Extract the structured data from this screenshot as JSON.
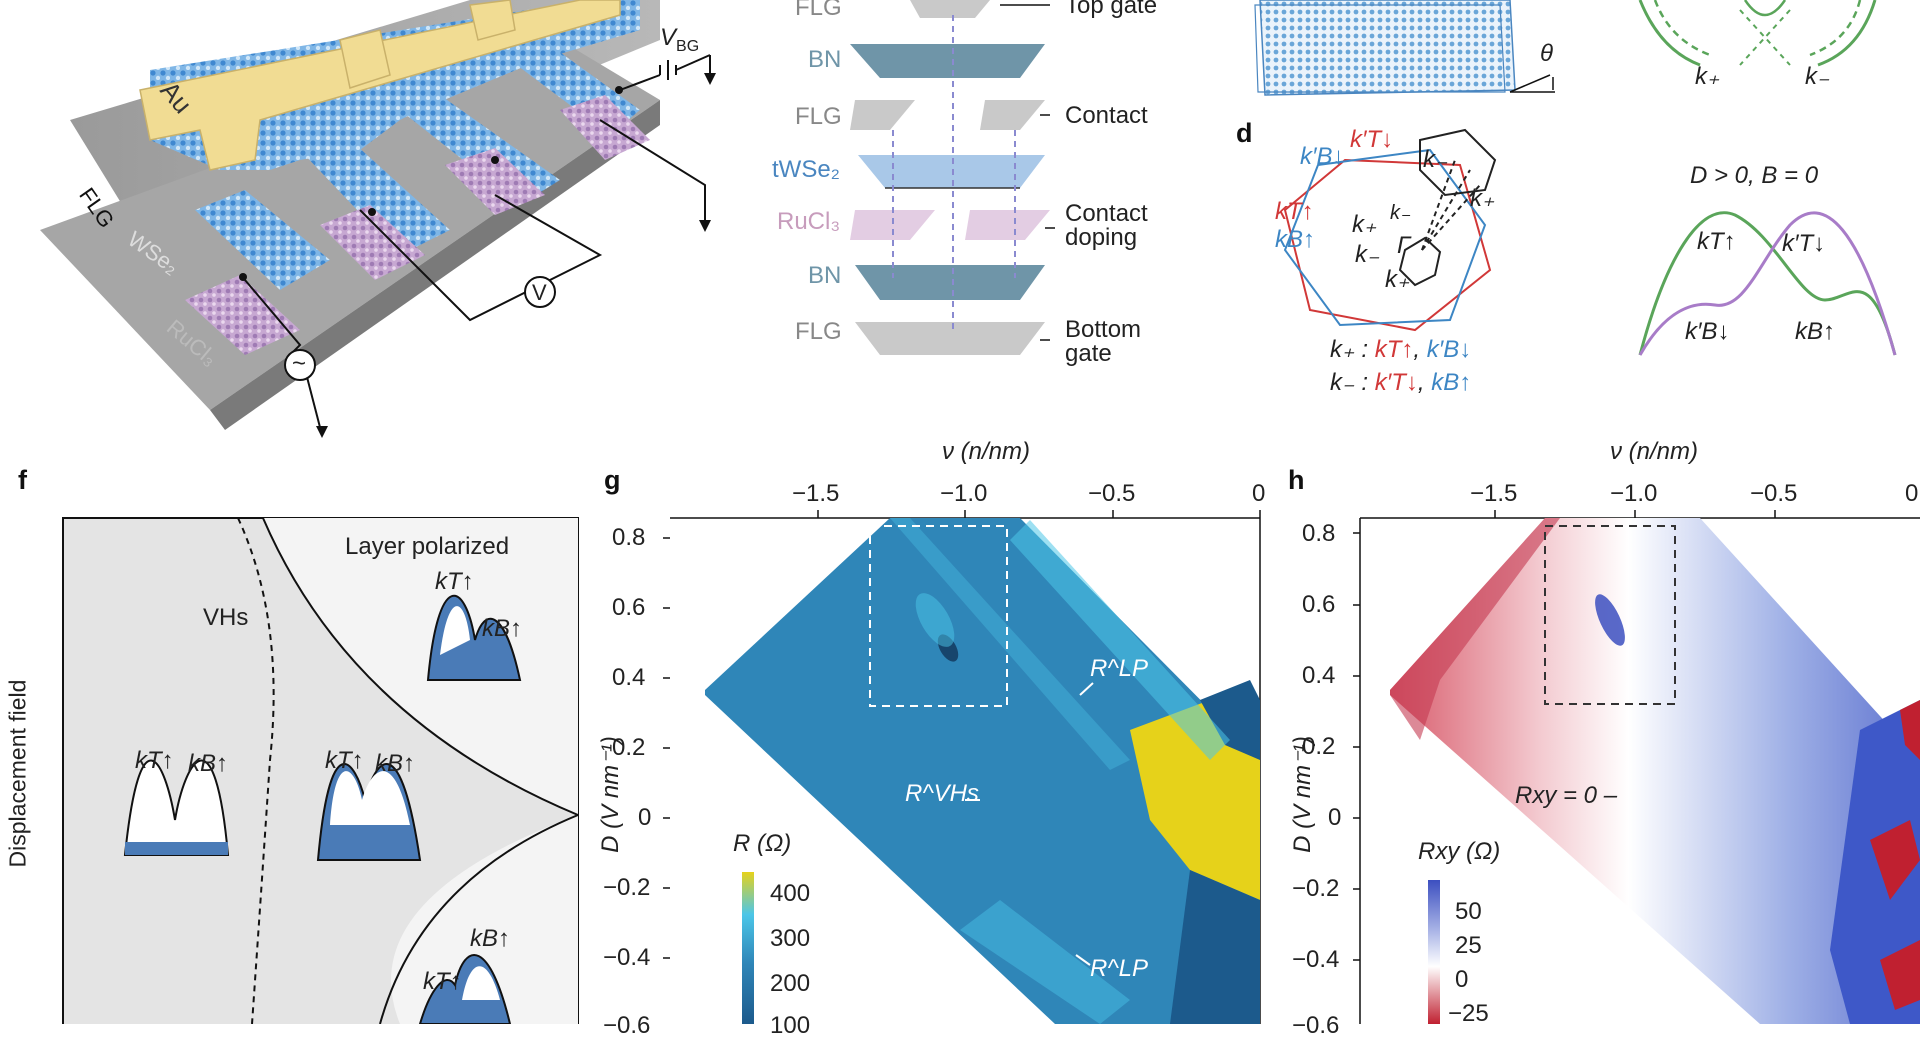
{
  "panel_letters": {
    "d": "d",
    "f": "f",
    "g": "g",
    "h": "h"
  },
  "panel_a": {
    "labels": {
      "flg_top": "FLG",
      "au": "Au",
      "flg_bottom": "FLG",
      "wse2": "WSe₂",
      "rucl3": "RuCl₃",
      "vbg": "V",
      "vbg_sub": "BG",
      "voltmeter": "V",
      "ac_source": "~"
    }
  },
  "panel_b": {
    "layers": [
      {
        "name": "FLG",
        "color": "#888888"
      },
      {
        "name": "BN",
        "color": "#6f95a8"
      },
      {
        "name": "FLG",
        "color": "#888888"
      },
      {
        "name": "tWSe₂",
        "color": "#4a86c0"
      },
      {
        "name": "RuCl₃",
        "color": "#c79cbc"
      },
      {
        "name": "BN",
        "color": "#6f95a8"
      },
      {
        "name": "FLG",
        "color": "#888888"
      }
    ],
    "side_labels": {
      "top_gate": "Top gate",
      "contact": "Contact",
      "contact_doping_1": "Contact",
      "contact_doping_2": "doping",
      "bottom_gate_1": "Bottom",
      "bottom_gate_2": "gate"
    }
  },
  "panel_c": {
    "theta": "θ"
  },
  "panel_e_top": {
    "k_plus": "k₊",
    "k_minus": "k₋"
  },
  "panel_d": {
    "labels": {
      "kpB_down": "k′B↓",
      "kpT_down": "k′T↓",
      "kT_up": "kT↑",
      "kB_up": "kB↑",
      "k_minus_1": "k₋",
      "k_plus_1": "k₊",
      "k_plus_2": "k₊",
      "k_minus_2": "k₋",
      "gamma": "Γ",
      "k_minus_3": "k₋",
      "k_plus_3": "k₊",
      "legend1_prefix": "k₊ :",
      "legend1_a": "kT↑",
      "legend1_sep": ",",
      "legend1_b": "k′B↓",
      "legend2_prefix": "k₋ :",
      "legend2_a": "k′T↓",
      "legend2_sep": ",",
      "legend2_b": "kB↑"
    }
  },
  "panel_e": {
    "title": "D > 0, B = 0",
    "labels": {
      "kT_up": "kT↑",
      "kpT_down": "k′T↓",
      "kpB_down": "k′B↓",
      "kB_up": "kB↑"
    },
    "colors": {
      "green": "#5aa55a",
      "purple": "#a87cc8"
    }
  },
  "panel_f": {
    "ylabel": "Displacement field",
    "region_layer_polarized": "Layer polarized",
    "vhs": "VHs",
    "insets": {
      "a_kT": "kT↑",
      "a_kB": "kB↑",
      "b_kT": "kT↑",
      "b_kB": "kB↑",
      "c_kT": "kT↑",
      "c_kB": "kB↑",
      "d_kB": "kB↑",
      "d_kT": "kT↑"
    }
  },
  "chart_data": [
    {
      "type": "heatmap",
      "panel": "g",
      "x_label": "ν (n/nm)",
      "y_label": "D (V nm⁻¹)",
      "xlim": [
        -1.85,
        0
      ],
      "ylim": [
        -0.7,
        0.85
      ],
      "x_ticks": [
        "−1.5",
        "−1.0",
        "−0.5",
        "0"
      ],
      "y_ticks": [
        "0.8",
        "0.6",
        "0.4",
        "0.2",
        "0",
        "−0.2",
        "−0.4",
        "−0.6"
      ],
      "colorbar": {
        "label": "R (Ω)",
        "ticks": [
          "400",
          "300",
          "200",
          "100"
        ],
        "colors": [
          "#e6d21a",
          "#4cc6e8",
          "#2f86b8",
          "#1c5a8c"
        ]
      },
      "annotations": [
        "R^LP",
        "R^VHs",
        "R^LP"
      ],
      "box_region": {
        "x": [
          -1.3,
          -0.85
        ],
        "y": [
          0.32,
          0.83
        ]
      }
    },
    {
      "type": "heatmap",
      "panel": "h",
      "x_label": "ν (n/nm)",
      "y_label": "D (V nm⁻¹)",
      "xlim": [
        -1.85,
        0
      ],
      "ylim": [
        -0.7,
        0.85
      ],
      "x_ticks": [
        "−1.5",
        "−1.0",
        "−0.5",
        "0"
      ],
      "y_ticks": [
        "0.8",
        "0.6",
        "0.4",
        "0.2",
        "0",
        "−0.2",
        "−0.4",
        "−0.6"
      ],
      "colorbar": {
        "label": "Rxy (Ω)",
        "ticks": [
          "50",
          "25",
          "0",
          "−25"
        ],
        "colors": [
          "#3c4fc0",
          "#9aa8e0",
          "#ffffff",
          "#e0a0a8",
          "#c02030"
        ]
      },
      "annotations": [
        "Rxy = 0 –"
      ],
      "box_region": {
        "x": [
          -1.3,
          -0.85
        ],
        "y": [
          0.32,
          0.83
        ]
      }
    }
  ]
}
